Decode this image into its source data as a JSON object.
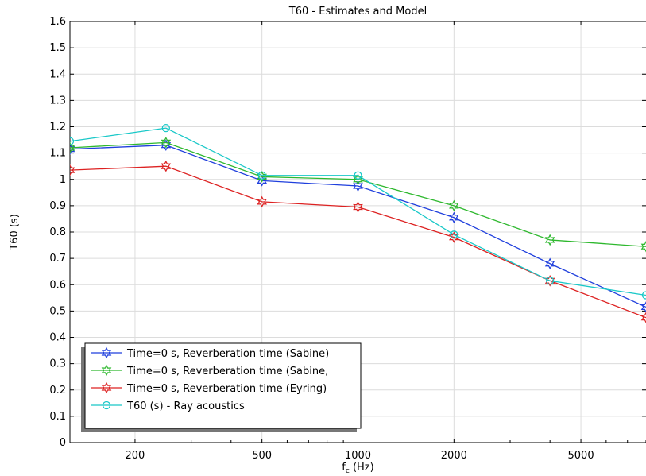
{
  "chart_data": {
    "type": "line",
    "title": "T60 - Estimates and Model",
    "xlabel": "f",
    "xlabel_sub": "c",
    "xlabel_unit": " (Hz)",
    "ylabel": "T60 (s)",
    "x_scale": "log",
    "xlim": [
      125,
      8000
    ],
    "ylim": [
      0,
      1.6
    ],
    "grid": true,
    "x_ticks": [
      200,
      500,
      1000,
      2000,
      5000
    ],
    "x_tick_labels": [
      "200",
      "500",
      "1000",
      "2000",
      "5000"
    ],
    "y_ticks": [
      0,
      0.1,
      0.2,
      0.3,
      0.4,
      0.5,
      0.6,
      0.7,
      0.8,
      0.9,
      1,
      1.1,
      1.2,
      1.3,
      1.4,
      1.5,
      1.6
    ],
    "y_tick_labels": [
      "0",
      "0.1",
      "0.2",
      "0.3",
      "0.4",
      "0.5",
      "0.6",
      "0.7",
      "0.8",
      "0.9",
      "1",
      "1.1",
      "1.2",
      "1.3",
      "1.4",
      "1.5",
      "1.6"
    ],
    "x": [
      125,
      250,
      500,
      1000,
      2000,
      4000,
      8000
    ],
    "legend_position": "lower-left",
    "series": [
      {
        "name": "Time=0 s, Reverberation time (Sabine)",
        "color": "#1f3fdd",
        "marker": "star",
        "values": [
          1.115,
          1.13,
          0.995,
          0.975,
          0.855,
          0.68,
          0.515
        ]
      },
      {
        "name": "Time=0 s, Reverberation time (Sabine,",
        "color": "#2eb82e",
        "marker": "star",
        "values": [
          1.12,
          1.14,
          1.01,
          1.0,
          0.9,
          0.77,
          0.745
        ]
      },
      {
        "name": "Time=0 s, Reverberation time (Eyring)",
        "color": "#dd2222",
        "marker": "star",
        "values": [
          1.035,
          1.05,
          0.915,
          0.895,
          0.78,
          0.615,
          0.475
        ]
      },
      {
        "name": "T60 (s) - Ray acoustics",
        "color": "#19c8c8",
        "marker": "circle",
        "values": [
          1.145,
          1.195,
          1.015,
          1.015,
          0.79,
          0.615,
          0.56
        ]
      }
    ]
  }
}
